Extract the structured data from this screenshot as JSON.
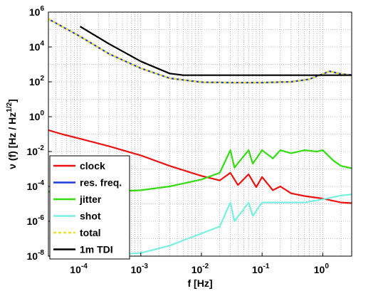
{
  "chart_data": {
    "type": "line",
    "xlabel": "f [Hz]",
    "ylabel": "ν (f) [Hz / Hz",
    "ylabel_sup": "1/2",
    "ylabel_end": "]",
    "xscale": "log",
    "yscale": "log",
    "xlim": [
      3e-05,
      3
    ],
    "ylim": [
      1e-08,
      1000000.0
    ],
    "grid": "minor-dotted",
    "legend_position": "bottom-left",
    "x_ticks": [
      {
        "value": 0.0001,
        "base": "10",
        "exp": "-4"
      },
      {
        "value": 0.001,
        "base": "10",
        "exp": "-3"
      },
      {
        "value": 0.01,
        "base": "10",
        "exp": "-2"
      },
      {
        "value": 0.1,
        "base": "10",
        "exp": "-1"
      },
      {
        "value": 1,
        "base": "10",
        "exp": "0"
      }
    ],
    "y_ticks": [
      {
        "value": 1000000.0,
        "base": "10",
        "exp": "6"
      },
      {
        "value": 10000.0,
        "base": "10",
        "exp": "4"
      },
      {
        "value": 100.0,
        "base": "10",
        "exp": "2"
      },
      {
        "value": 1.0,
        "base": "10",
        "exp": "0"
      },
      {
        "value": 0.01,
        "base": "10",
        "exp": "-2"
      },
      {
        "value": 0.0001,
        "base": "10",
        "exp": "-4"
      },
      {
        "value": 1e-06,
        "base": "10",
        "exp": "-6"
      },
      {
        "value": 1e-08,
        "base": "10",
        "exp": "-8"
      }
    ],
    "series": [
      {
        "name": "clock",
        "color": "#ee1111",
        "points": [
          [
            3e-05,
            0.17
          ],
          [
            5e-05,
            0.1
          ],
          [
            0.0001,
            0.055
          ],
          [
            0.0003,
            0.02
          ],
          [
            0.001,
            0.006
          ],
          [
            0.003,
            0.0015
          ],
          [
            0.01,
            0.0004
          ],
          [
            0.02,
            0.00022
          ],
          [
            0.03,
            0.0006
          ],
          [
            0.04,
            0.00012
          ],
          [
            0.06,
            0.0005
          ],
          [
            0.08,
            9e-05
          ],
          [
            0.1,
            0.00035
          ],
          [
            0.15,
            6e-05
          ],
          [
            0.2,
            0.0001
          ],
          [
            0.3,
            4e-05
          ],
          [
            0.5,
            2.8e-05
          ],
          [
            1,
            2e-05
          ],
          [
            2,
            1.2e-05
          ],
          [
            3,
            1.1e-05
          ]
        ]
      },
      {
        "name": "res. freq.",
        "color": "#1a3adb",
        "points": [
          [
            3e-05,
            400000
          ],
          [
            0.0001,
            40000
          ],
          [
            0.0003,
            4000
          ],
          [
            0.001,
            600
          ],
          [
            0.003,
            160
          ],
          [
            0.01,
            95
          ],
          [
            0.03,
            90
          ],
          [
            0.1,
            90
          ],
          [
            0.3,
            100
          ],
          [
            0.6,
            140
          ],
          [
            1,
            280
          ],
          [
            1.3,
            400
          ],
          [
            2,
            280
          ],
          [
            3,
            250
          ]
        ]
      },
      {
        "name": "jitter",
        "color": "#33dd11",
        "points": [
          [
            3e-05,
            5e-05
          ],
          [
            0.0001,
            5e-05
          ],
          [
            0.0003,
            5e-05
          ],
          [
            0.001,
            6e-05
          ],
          [
            0.003,
            0.0001
          ],
          [
            0.01,
            0.00025
          ],
          [
            0.02,
            0.0006
          ],
          [
            0.03,
            0.012
          ],
          [
            0.035,
            0.0012
          ],
          [
            0.06,
            0.012
          ],
          [
            0.07,
            0.002
          ],
          [
            0.1,
            0.012
          ],
          [
            0.15,
            0.004
          ],
          [
            0.2,
            0.012
          ],
          [
            0.3,
            0.008
          ],
          [
            0.5,
            0.012
          ],
          [
            0.8,
            0.01
          ],
          [
            1,
            0.012
          ],
          [
            1.5,
            0.003
          ],
          [
            2,
            0.0015
          ],
          [
            3,
            0.0011
          ]
        ]
      },
      {
        "name": "shot",
        "color": "#77f0e0",
        "points": [
          [
            3e-05,
            1e-08
          ],
          [
            0.0001,
            1.1e-08
          ],
          [
            0.0003,
            1.2e-08
          ],
          [
            0.001,
            1.5e-08
          ],
          [
            0.003,
            4e-08
          ],
          [
            0.01,
            2e-07
          ],
          [
            0.02,
            5e-07
          ],
          [
            0.03,
            1.2e-05
          ],
          [
            0.035,
            1e-06
          ],
          [
            0.06,
            1.2e-05
          ],
          [
            0.07,
            2e-06
          ],
          [
            0.1,
            1.2e-05
          ],
          [
            0.2,
            1.2e-05
          ],
          [
            0.5,
            1.2e-05
          ],
          [
            1,
            1.8e-05
          ],
          [
            2,
            3e-05
          ],
          [
            3,
            3.5e-05
          ]
        ]
      },
      {
        "name": "total",
        "color": "#f0e020",
        "points": [
          [
            3e-05,
            400000
          ],
          [
            0.0001,
            40000
          ],
          [
            0.0003,
            4000
          ],
          [
            0.001,
            600
          ],
          [
            0.003,
            160
          ],
          [
            0.01,
            95
          ],
          [
            0.03,
            90
          ],
          [
            0.1,
            90
          ],
          [
            0.3,
            100
          ],
          [
            0.6,
            140
          ],
          [
            1,
            280
          ],
          [
            1.3,
            400
          ],
          [
            2,
            280
          ],
          [
            3,
            250
          ]
        ]
      },
      {
        "name": "1m TDI",
        "color": "#000000",
        "points": [
          [
            0.0001,
            150000
          ],
          [
            0.0003,
            15000
          ],
          [
            0.001,
            1500
          ],
          [
            0.003,
            300
          ],
          [
            0.005,
            240
          ],
          [
            0.01,
            240
          ],
          [
            0.1,
            240
          ],
          [
            1,
            240
          ],
          [
            3,
            240
          ]
        ]
      }
    ]
  }
}
